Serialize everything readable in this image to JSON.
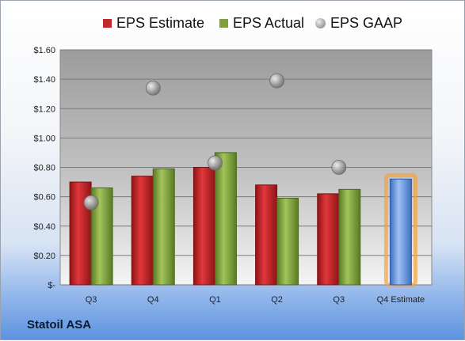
{
  "company": "Statoil ASA",
  "chart_data": {
    "type": "bar",
    "categories": [
      "Q3",
      "Q4",
      "Q1",
      "Q2",
      "Q3",
      "Q4 Estimate"
    ],
    "series": [
      {
        "name": "EPS Estimate",
        "values": [
          0.7,
          0.74,
          0.8,
          0.68,
          0.62,
          0.72
        ],
        "color": "#c0282b",
        "style": "bar"
      },
      {
        "name": "EPS Actual",
        "values": [
          0.66,
          0.79,
          0.9,
          0.59,
          0.65,
          null
        ],
        "color": "#7fa03a",
        "style": "bar"
      },
      {
        "name": "EPS GAAP",
        "values": [
          0.56,
          1.34,
          0.83,
          1.39,
          0.8,
          null
        ],
        "color": "#a6a6a6",
        "style": "marker"
      }
    ],
    "estimate_bar_color": "#6b9ae0",
    "estimate_glow_color": "#f5a33c",
    "ylim": [
      0,
      1.6
    ],
    "yticks": [
      0,
      0.2,
      0.4,
      0.6,
      0.8,
      1.0,
      1.2,
      1.4,
      1.6
    ],
    "ytick_labels": [
      "$-",
      "$0.20",
      "$0.40",
      "$0.60",
      "$0.80",
      "$1.00",
      "$1.20",
      "$1.40",
      "$1.60"
    ],
    "grid": true,
    "legend_position": "top",
    "title": "",
    "xlabel": "",
    "ylabel": ""
  }
}
